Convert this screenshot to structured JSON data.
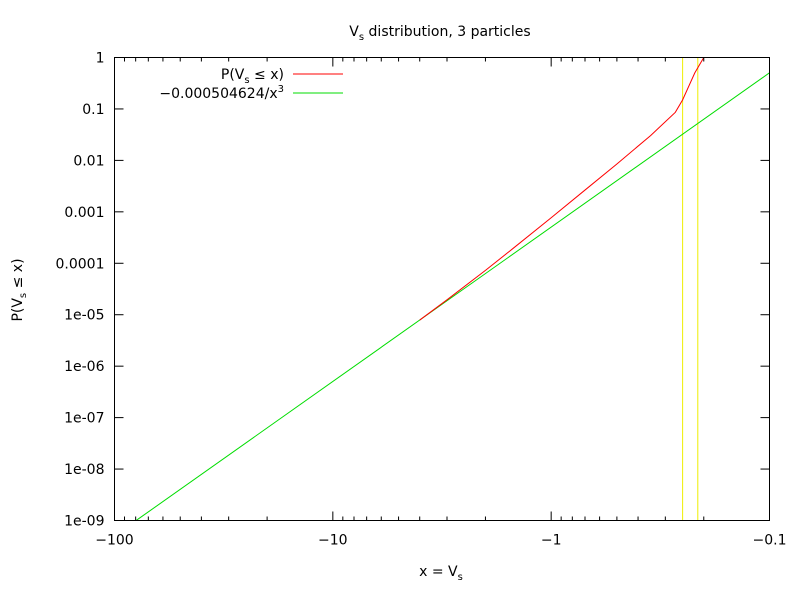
{
  "chart_data": {
    "type": "line",
    "title": {
      "main": "V",
      "sub": "s",
      "rest": " distribution, 3 particles"
    },
    "xlabel": {
      "pre": "x = V",
      "sub": "s",
      "post": ""
    },
    "ylabel": {
      "pre": "P(V",
      "sub": "s",
      "post": " ≤ x)"
    },
    "x_scale": "log-of-negative",
    "y_scale": "log",
    "xlim": [
      -100,
      -0.1
    ],
    "ylim": [
      1e-09,
      1
    ],
    "x_ticks": [
      {
        "value": -100,
        "label": "−100"
      },
      {
        "value": -10,
        "label": "−10"
      },
      {
        "value": -1,
        "label": "−1"
      },
      {
        "value": -0.1,
        "label": "−0.1"
      }
    ],
    "y_ticks": [
      {
        "value": 1,
        "label": "1"
      },
      {
        "value": 0.1,
        "label": "0.1"
      },
      {
        "value": 0.01,
        "label": "0.01"
      },
      {
        "value": 0.001,
        "label": "0.001"
      },
      {
        "value": 0.0001,
        "label": "0.0001"
      },
      {
        "value": 1e-05,
        "label": "1e-05"
      },
      {
        "value": 1e-06,
        "label": "1e-06"
      },
      {
        "value": 1e-07,
        "label": "1e-07"
      },
      {
        "value": 1e-08,
        "label": "1e-08"
      },
      {
        "value": 1e-09,
        "label": "1e-09"
      }
    ],
    "legend_position": "top-left",
    "series": [
      {
        "name": {
          "pre": "P(V",
          "sub": "s",
          "post": " ≤ x)"
        },
        "color": "#ff0000",
        "x": [
          -4.0,
          -3.0,
          -2.0,
          -1.5,
          -1.0,
          -0.7,
          -0.5,
          -0.35,
          -0.27,
          -0.25,
          -0.22,
          -0.2
        ],
        "y": [
          7.88e-06,
          1.95e-05,
          7.27e-05,
          0.000192,
          0.000767,
          0.00265,
          0.00852,
          0.0305,
          0.086,
          0.15,
          0.5,
          1.0
        ]
      },
      {
        "name": {
          "pre": "−0.000504624/x",
          "sup": "3",
          "post": ""
        },
        "color": "#00dd00",
        "x": [
          -80.0,
          -0.1
        ],
        "y": [
          9.85e-10,
          0.504624
        ]
      }
    ],
    "vertical_lines": [
      {
        "x": -0.25,
        "color": "#eeee00"
      },
      {
        "x": -0.213,
        "color": "#eeee00"
      }
    ]
  }
}
